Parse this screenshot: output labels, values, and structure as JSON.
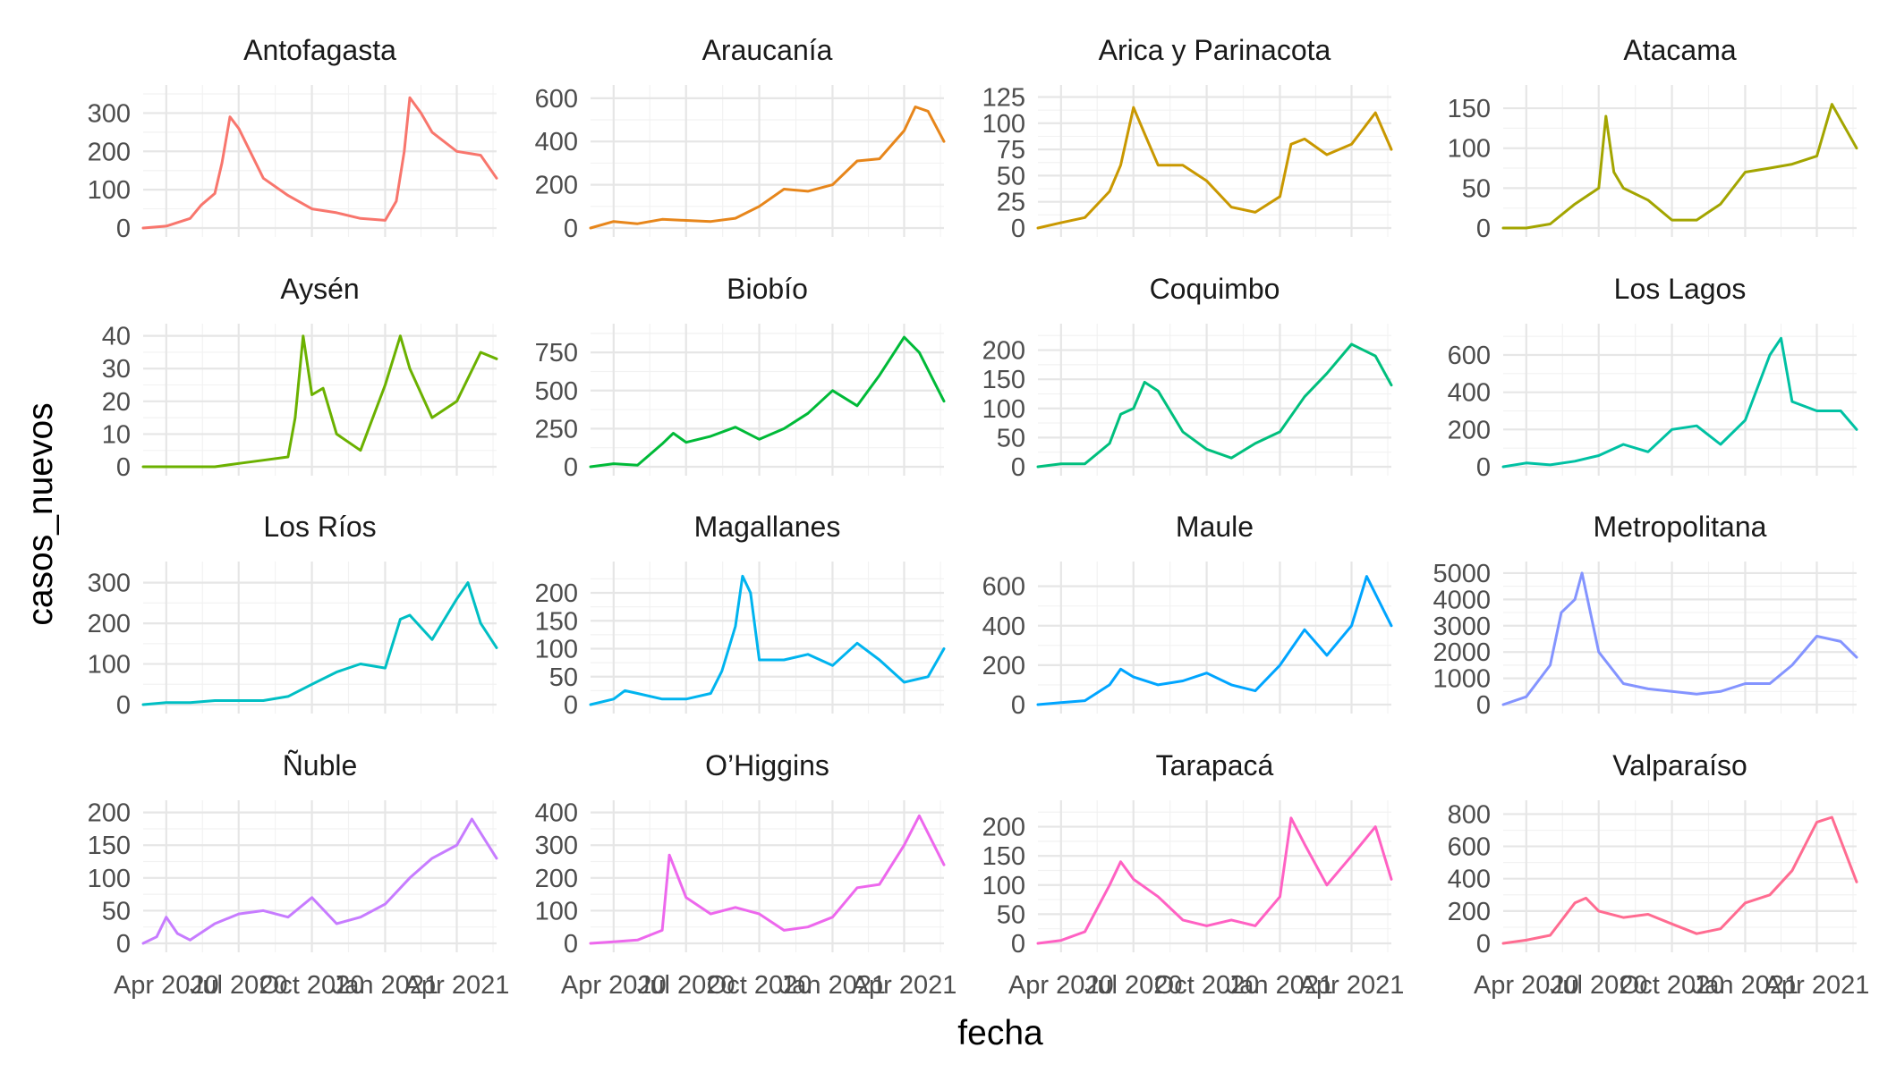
{
  "chart_data": {
    "type": "line",
    "layout": "facet_wrap",
    "xlabel": "fecha",
    "ylabel": "casos_nuevos",
    "x_tick_labels": [
      "Apr 2020",
      "Jul 2020",
      "Oct 2020",
      "Jan 2021",
      "Apr 2021"
    ],
    "x_ticks": [
      "2020-04-01",
      "2020-07-01",
      "2020-10-01",
      "2021-01-01",
      "2021-04-01"
    ],
    "xlim": [
      "2020-03-03",
      "2021-05-21"
    ],
    "grid": true,
    "legend": "none",
    "panels": [
      {
        "name": "Antofagasta",
        "color": "#F8766D",
        "ylim": [
          0,
          350
        ],
        "yticks": [
          0,
          100,
          200,
          300
        ],
        "x": [
          "2020-03-03",
          "2020-04-01",
          "2020-05-01",
          "2020-05-15",
          "2020-06-01",
          "2020-06-10",
          "2020-06-20",
          "2020-07-01",
          "2020-08-01",
          "2020-09-01",
          "2020-10-01",
          "2020-11-01",
          "2020-12-01",
          "2021-01-01",
          "2021-01-15",
          "2021-01-25",
          "2021-02-01",
          "2021-02-15",
          "2021-03-01",
          "2021-04-01",
          "2021-05-01",
          "2021-05-21"
        ],
        "y": [
          0,
          5,
          25,
          60,
          90,
          170,
          290,
          260,
          130,
          85,
          50,
          40,
          25,
          20,
          70,
          200,
          340,
          300,
          250,
          200,
          190,
          130
        ]
      },
      {
        "name": "Araucanía",
        "color": "#E7861B",
        "ylim": [
          0,
          620
        ],
        "yticks": [
          0,
          200,
          400,
          600
        ],
        "x": [
          "2020-03-03",
          "2020-04-01",
          "2020-05-01",
          "2020-06-01",
          "2020-07-01",
          "2020-08-01",
          "2020-09-01",
          "2020-10-01",
          "2020-11-01",
          "2020-12-01",
          "2021-01-01",
          "2021-02-01",
          "2021-03-01",
          "2021-04-01",
          "2021-04-15",
          "2021-05-01",
          "2021-05-21"
        ],
        "y": [
          0,
          30,
          20,
          40,
          35,
          30,
          45,
          100,
          180,
          170,
          200,
          310,
          320,
          450,
          560,
          540,
          400
        ]
      },
      {
        "name": "Arica y Parinacota",
        "color": "#C99800",
        "ylim": [
          0,
          128
        ],
        "yticks": [
          0,
          25,
          50,
          75,
          100,
          125
        ],
        "x": [
          "2020-03-03",
          "2020-04-01",
          "2020-05-01",
          "2020-06-01",
          "2020-06-15",
          "2020-07-01",
          "2020-07-15",
          "2020-08-01",
          "2020-09-01",
          "2020-10-01",
          "2020-11-01",
          "2020-12-01",
          "2021-01-01",
          "2021-01-15",
          "2021-02-01",
          "2021-03-01",
          "2021-04-01",
          "2021-05-01",
          "2021-05-21"
        ],
        "y": [
          0,
          5,
          10,
          35,
          60,
          115,
          90,
          60,
          60,
          45,
          20,
          15,
          30,
          80,
          85,
          70,
          80,
          110,
          75
        ]
      },
      {
        "name": "Atacama",
        "color": "#A3A500",
        "ylim": [
          0,
          168
        ],
        "yticks": [
          0,
          50,
          100,
          150
        ],
        "x": [
          "2020-03-03",
          "2020-04-01",
          "2020-05-01",
          "2020-06-01",
          "2020-07-01",
          "2020-07-10",
          "2020-07-20",
          "2020-08-01",
          "2020-09-01",
          "2020-10-01",
          "2020-11-01",
          "2020-12-01",
          "2021-01-01",
          "2021-02-01",
          "2021-03-01",
          "2021-04-01",
          "2021-04-20",
          "2021-05-21"
        ],
        "y": [
          0,
          0,
          5,
          30,
          50,
          140,
          70,
          50,
          35,
          10,
          10,
          30,
          70,
          75,
          80,
          90,
          155,
          100
        ]
      },
      {
        "name": "Aysén",
        "color": "#6BB100",
        "ylim": [
          0,
          41
        ],
        "yticks": [
          0,
          10,
          20,
          30,
          40
        ],
        "x": [
          "2020-03-03",
          "2020-05-01",
          "2020-06-01",
          "2020-07-01",
          "2020-08-01",
          "2020-09-01",
          "2020-09-10",
          "2020-09-20",
          "2020-10-01",
          "2020-10-15",
          "2020-11-01",
          "2020-12-01",
          "2021-01-01",
          "2021-01-20",
          "2021-02-01",
          "2021-03-01",
          "2021-04-01",
          "2021-05-01",
          "2021-05-21"
        ],
        "y": [
          0,
          0,
          0,
          1,
          2,
          3,
          15,
          40,
          22,
          24,
          10,
          5,
          25,
          40,
          30,
          15,
          20,
          35,
          33
        ]
      },
      {
        "name": "Biobío",
        "color": "#00BA38",
        "ylim": [
          0,
          880
        ],
        "yticks": [
          0,
          250,
          500,
          750
        ],
        "x": [
          "2020-03-03",
          "2020-04-01",
          "2020-05-01",
          "2020-06-01",
          "2020-06-15",
          "2020-07-01",
          "2020-08-01",
          "2020-09-01",
          "2020-10-01",
          "2020-11-01",
          "2020-12-01",
          "2021-01-01",
          "2021-02-01",
          "2021-03-01",
          "2021-04-01",
          "2021-04-20",
          "2021-05-21"
        ],
        "y": [
          0,
          20,
          10,
          150,
          220,
          160,
          200,
          260,
          180,
          250,
          350,
          500,
          400,
          600,
          850,
          750,
          430
        ]
      },
      {
        "name": "Coquimbo",
        "color": "#00BF7D",
        "ylim": [
          0,
          230
        ],
        "yticks": [
          0,
          50,
          100,
          150,
          200
        ],
        "x": [
          "2020-03-03",
          "2020-04-01",
          "2020-05-01",
          "2020-06-01",
          "2020-06-15",
          "2020-07-01",
          "2020-07-15",
          "2020-08-01",
          "2020-09-01",
          "2020-10-01",
          "2020-11-01",
          "2020-12-01",
          "2021-01-01",
          "2021-02-01",
          "2021-03-01",
          "2021-04-01",
          "2021-05-01",
          "2021-05-21"
        ],
        "y": [
          0,
          5,
          5,
          40,
          90,
          100,
          145,
          130,
          60,
          30,
          15,
          40,
          60,
          120,
          160,
          210,
          190,
          140
        ]
      },
      {
        "name": "Los Lagos",
        "color": "#00C1A3",
        "ylim": [
          0,
          720
        ],
        "yticks": [
          0,
          200,
          400,
          600
        ],
        "x": [
          "2020-03-03",
          "2020-04-01",
          "2020-05-01",
          "2020-06-01",
          "2020-07-01",
          "2020-08-01",
          "2020-09-01",
          "2020-10-01",
          "2020-11-01",
          "2020-12-01",
          "2021-01-01",
          "2021-02-01",
          "2021-02-15",
          "2021-03-01",
          "2021-04-01",
          "2021-05-01",
          "2021-05-21"
        ],
        "y": [
          0,
          20,
          10,
          30,
          60,
          120,
          80,
          200,
          220,
          120,
          250,
          600,
          690,
          350,
          300,
          300,
          200
        ]
      },
      {
        "name": "Los Ríos",
        "color": "#00BFC4",
        "ylim": [
          0,
          330
        ],
        "yticks": [
          0,
          100,
          200,
          300
        ],
        "x": [
          "2020-03-03",
          "2020-04-01",
          "2020-05-01",
          "2020-06-01",
          "2020-07-01",
          "2020-08-01",
          "2020-09-01",
          "2020-10-01",
          "2020-11-01",
          "2020-12-01",
          "2021-01-01",
          "2021-01-20",
          "2021-02-01",
          "2021-03-01",
          "2021-04-01",
          "2021-04-15",
          "2021-05-01",
          "2021-05-21"
        ],
        "y": [
          0,
          5,
          5,
          10,
          10,
          10,
          20,
          50,
          80,
          100,
          90,
          210,
          220,
          160,
          260,
          300,
          200,
          140
        ]
      },
      {
        "name": "Magallanes",
        "color": "#00B4EF",
        "ylim": [
          0,
          240
        ],
        "yticks": [
          0,
          50,
          100,
          150,
          200
        ],
        "x": [
          "2020-03-03",
          "2020-04-01",
          "2020-04-15",
          "2020-05-01",
          "2020-06-01",
          "2020-07-01",
          "2020-08-01",
          "2020-08-15",
          "2020-09-01",
          "2020-09-10",
          "2020-09-20",
          "2020-10-01",
          "2020-11-01",
          "2020-12-01",
          "2021-01-01",
          "2021-02-01",
          "2021-03-01",
          "2021-04-01",
          "2021-05-01",
          "2021-05-21"
        ],
        "y": [
          0,
          10,
          25,
          20,
          10,
          10,
          20,
          60,
          140,
          230,
          200,
          80,
          80,
          90,
          70,
          110,
          80,
          40,
          50,
          100
        ]
      },
      {
        "name": "Maule",
        "color": "#00A5FF",
        "ylim": [
          0,
          680
        ],
        "yticks": [
          0,
          200,
          400,
          600
        ],
        "x": [
          "2020-03-03",
          "2020-04-01",
          "2020-05-01",
          "2020-06-01",
          "2020-06-15",
          "2020-07-01",
          "2020-08-01",
          "2020-09-01",
          "2020-10-01",
          "2020-11-01",
          "2020-12-01",
          "2021-01-01",
          "2021-02-01",
          "2021-03-01",
          "2021-04-01",
          "2021-04-20",
          "2021-05-21"
        ],
        "y": [
          0,
          10,
          20,
          100,
          180,
          140,
          100,
          120,
          160,
          100,
          70,
          200,
          380,
          250,
          400,
          650,
          400
        ]
      },
      {
        "name": "Metropolitana",
        "color": "#8494FF",
        "ylim": [
          0,
          5100
        ],
        "yticks": [
          0,
          1000,
          2000,
          3000,
          4000,
          5000
        ],
        "x": [
          "2020-03-03",
          "2020-04-01",
          "2020-05-01",
          "2020-05-15",
          "2020-06-01",
          "2020-06-10",
          "2020-07-01",
          "2020-08-01",
          "2020-09-01",
          "2020-10-01",
          "2020-11-01",
          "2020-12-01",
          "2021-01-01",
          "2021-02-01",
          "2021-03-01",
          "2021-04-01",
          "2021-05-01",
          "2021-05-21"
        ],
        "y": [
          0,
          300,
          1500,
          3500,
          4000,
          5000,
          2000,
          800,
          600,
          500,
          400,
          500,
          800,
          800,
          1500,
          2600,
          2400,
          1800
        ]
      },
      {
        "name": "Ñuble",
        "color": "#C77CFF",
        "ylim": [
          0,
          205
        ],
        "yticks": [
          0,
          50,
          100,
          150,
          200
        ],
        "x": [
          "2020-03-03",
          "2020-03-20",
          "2020-04-01",
          "2020-04-15",
          "2020-05-01",
          "2020-06-01",
          "2020-07-01",
          "2020-08-01",
          "2020-09-01",
          "2020-10-01",
          "2020-11-01",
          "2020-12-01",
          "2021-01-01",
          "2021-02-01",
          "2021-03-01",
          "2021-04-01",
          "2021-04-20",
          "2021-05-21"
        ],
        "y": [
          0,
          10,
          40,
          15,
          5,
          30,
          45,
          50,
          40,
          70,
          30,
          40,
          60,
          100,
          130,
          150,
          190,
          130
        ]
      },
      {
        "name": "O’Higgins",
        "color": "#ED68ED",
        "ylim": [
          0,
          410
        ],
        "yticks": [
          0,
          100,
          200,
          300,
          400
        ],
        "x": [
          "2020-03-03",
          "2020-04-01",
          "2020-05-01",
          "2020-06-01",
          "2020-06-10",
          "2020-07-01",
          "2020-08-01",
          "2020-09-01",
          "2020-10-01",
          "2020-11-01",
          "2020-12-01",
          "2021-01-01",
          "2021-02-01",
          "2021-03-01",
          "2021-04-01",
          "2021-04-20",
          "2021-05-21"
        ],
        "y": [
          0,
          5,
          10,
          40,
          270,
          140,
          90,
          110,
          90,
          40,
          50,
          80,
          170,
          180,
          300,
          390,
          240
        ]
      },
      {
        "name": "Tarapacá",
        "color": "#FF61C3",
        "ylim": [
          0,
          230
        ],
        "yticks": [
          0,
          50,
          100,
          150,
          200
        ],
        "x": [
          "2020-03-03",
          "2020-04-01",
          "2020-05-01",
          "2020-06-01",
          "2020-06-15",
          "2020-07-01",
          "2020-08-01",
          "2020-09-01",
          "2020-10-01",
          "2020-11-01",
          "2020-12-01",
          "2021-01-01",
          "2021-01-15",
          "2021-02-01",
          "2021-03-01",
          "2021-04-01",
          "2021-05-01",
          "2021-05-21"
        ],
        "y": [
          0,
          5,
          20,
          100,
          140,
          110,
          80,
          40,
          30,
          40,
          30,
          80,
          215,
          170,
          100,
          150,
          200,
          110
        ]
      },
      {
        "name": "Valparaíso",
        "color": "#FF6C91",
        "ylim": [
          0,
          830
        ],
        "yticks": [
          0,
          200,
          400,
          600,
          800
        ],
        "x": [
          "2020-03-03",
          "2020-04-01",
          "2020-05-01",
          "2020-06-01",
          "2020-06-15",
          "2020-07-01",
          "2020-08-01",
          "2020-09-01",
          "2020-10-01",
          "2020-11-01",
          "2020-12-01",
          "2021-01-01",
          "2021-02-01",
          "2021-03-01",
          "2021-04-01",
          "2021-04-20",
          "2021-05-21"
        ],
        "y": [
          0,
          20,
          50,
          250,
          280,
          200,
          160,
          180,
          120,
          60,
          90,
          250,
          300,
          450,
          750,
          780,
          380
        ]
      }
    ]
  }
}
